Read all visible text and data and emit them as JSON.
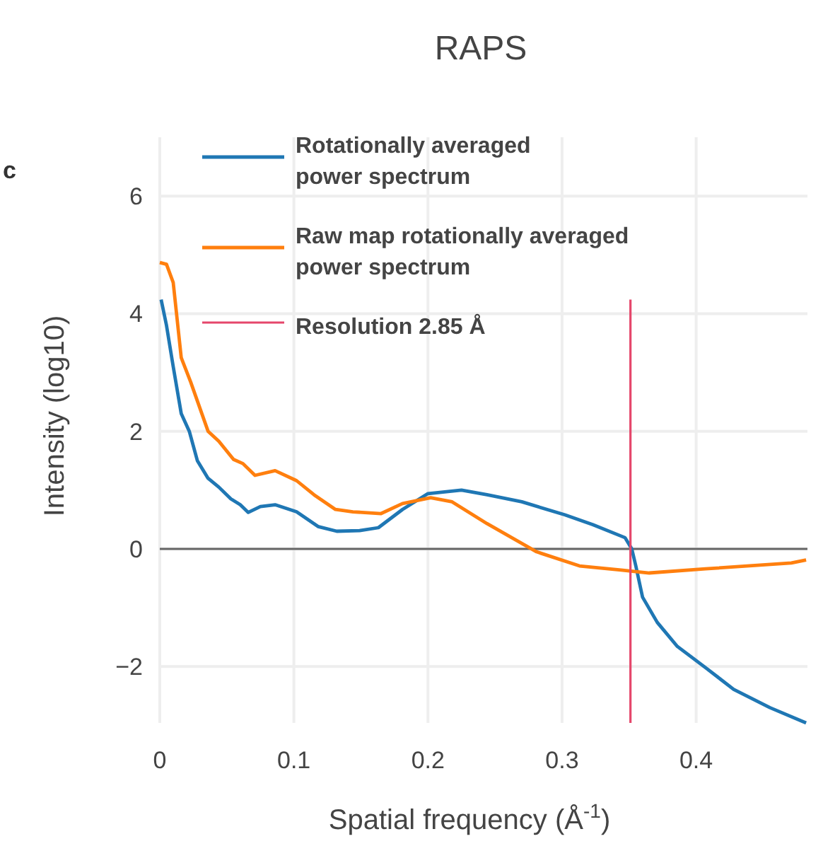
{
  "chart_data": {
    "type": "line",
    "title": "RAPS",
    "xlabel": "Spatial frequency (Å$^{-1}$)",
    "ylabel": "Intensity (log10)",
    "annotations": [
      "c"
    ],
    "xlim": [
      0,
      0.483
    ],
    "xticks": [
      0,
      0.1,
      0.2,
      0.3,
      0.4
    ],
    "ylim": [
      -2.96,
      7
    ],
    "yticks": [
      {
        "value": -2,
        "label": "−2"
      },
      0,
      2,
      4,
      6
    ],
    "grid": true,
    "legend": "top left",
    "line_style": "solid",
    "marker": "none",
    "series": [
      {
        "name": "Rotationally averaged\npower spectrum",
        "color": "#1f77b4",
        "x": [
          0.001,
          0.005,
          0.01,
          0.016,
          0.022,
          0.028,
          0.036,
          0.044,
          0.053,
          0.06,
          0.066,
          0.075,
          0.086,
          0.102,
          0.118,
          0.132,
          0.149,
          0.163,
          0.181,
          0.2,
          0.225,
          0.244,
          0.27,
          0.302,
          0.323,
          0.347,
          0.352,
          0.355,
          0.36,
          0.371,
          0.386,
          0.407,
          0.428,
          0.455,
          0.482
        ],
        "values": [
          4.24,
          3.8,
          3.1,
          2.3,
          2.0,
          1.5,
          1.2,
          1.05,
          0.85,
          0.75,
          0.62,
          0.72,
          0.75,
          0.63,
          0.38,
          0.3,
          0.31,
          0.36,
          0.67,
          0.94,
          1.0,
          0.92,
          0.8,
          0.58,
          0.41,
          0.19,
          0,
          -0.29,
          -0.82,
          -1.25,
          -1.66,
          -2.02,
          -2.39,
          -2.7,
          -2.96
        ]
      },
      {
        "name": "Raw map rotationally averaged\npower spectrum",
        "color": "#ff7f0e",
        "x": [
          0,
          0.005,
          0.01,
          0.016,
          0.023,
          0.036,
          0.044,
          0.055,
          0.062,
          0.071,
          0.086,
          0.102,
          0.115,
          0.131,
          0.144,
          0.165,
          0.181,
          0.202,
          0.218,
          0.244,
          0.281,
          0.313,
          0.344,
          0.365,
          0.407,
          0.471,
          0.482
        ],
        "values": [
          4.87,
          4.84,
          4.53,
          3.25,
          2.84,
          2.0,
          1.83,
          1.52,
          1.45,
          1.25,
          1.33,
          1.16,
          0.92,
          0.67,
          0.63,
          0.6,
          0.77,
          0.87,
          0.8,
          0.43,
          -0.05,
          -0.29,
          -0.36,
          -0.41,
          -0.34,
          -0.24,
          -0.19
        ]
      },
      {
        "name": "Resolution 2.85 Å",
        "color": "#e5476b",
        "x": [
          0.351,
          0.351
        ],
        "values": [
          4.24,
          -2.96
        ]
      }
    ]
  }
}
